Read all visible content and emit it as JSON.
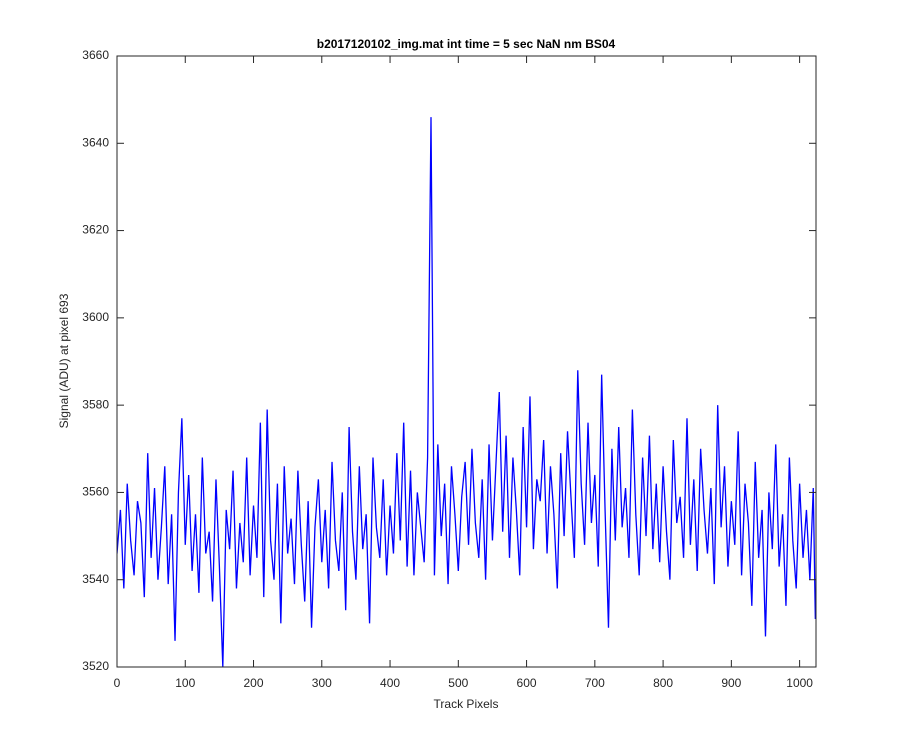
{
  "chart_data": {
    "type": "line",
    "title": "b2017120102_img.mat int time = 5 sec  NaN nm BS04",
    "x_label": "Track Pixels",
    "y_label": "Signal (ADU) at pixel 693",
    "xlim": [
      0,
      1024
    ],
    "ylim": [
      3520,
      3660
    ],
    "xticks": [
      0,
      100,
      200,
      300,
      400,
      500,
      600,
      700,
      800,
      900,
      1000
    ],
    "yticks": [
      3520,
      3540,
      3560,
      3580,
      3600,
      3620,
      3640,
      3660
    ],
    "grid": false,
    "x": [
      0,
      5,
      10,
      15,
      20,
      25,
      30,
      35,
      40,
      45,
      50,
      55,
      60,
      65,
      70,
      75,
      80,
      85,
      90,
      95,
      100,
      105,
      110,
      115,
      120,
      125,
      130,
      135,
      140,
      145,
      150,
      155,
      160,
      165,
      170,
      175,
      180,
      185,
      190,
      195,
      200,
      205,
      210,
      215,
      220,
      225,
      230,
      235,
      240,
      245,
      250,
      255,
      260,
      265,
      270,
      275,
      280,
      285,
      290,
      295,
      300,
      305,
      310,
      315,
      320,
      325,
      330,
      335,
      340,
      345,
      350,
      355,
      360,
      365,
      370,
      375,
      380,
      385,
      390,
      395,
      400,
      405,
      410,
      415,
      420,
      425,
      430,
      435,
      440,
      445,
      450,
      455,
      460,
      465,
      470,
      475,
      480,
      485,
      490,
      495,
      500,
      505,
      510,
      515,
      520,
      525,
      530,
      535,
      540,
      545,
      550,
      555,
      560,
      565,
      570,
      575,
      580,
      585,
      590,
      595,
      600,
      605,
      610,
      615,
      620,
      625,
      630,
      635,
      640,
      645,
      650,
      655,
      660,
      665,
      670,
      675,
      680,
      685,
      690,
      695,
      700,
      705,
      710,
      715,
      720,
      725,
      730,
      735,
      740,
      745,
      750,
      755,
      760,
      765,
      770,
      775,
      780,
      785,
      790,
      795,
      800,
      805,
      810,
      815,
      820,
      825,
      830,
      835,
      840,
      845,
      850,
      855,
      860,
      865,
      870,
      875,
      880,
      885,
      890,
      895,
      900,
      905,
      910,
      915,
      920,
      925,
      930,
      935,
      940,
      945,
      950,
      955,
      960,
      965,
      970,
      975,
      980,
      985,
      990,
      995,
      1000,
      1005,
      1010,
      1015,
      1020,
      1023
    ],
    "series": [
      {
        "color": "#0000ff",
        "values": [
          3546,
          3556,
          3538,
          3562,
          3549,
          3541,
          3558,
          3553,
          3536,
          3569,
          3545,
          3561,
          3540,
          3552,
          3566,
          3539,
          3555,
          3526,
          3560,
          3577,
          3548,
          3564,
          3542,
          3555,
          3537,
          3568,
          3546,
          3551,
          3535,
          3563,
          3543,
          3520,
          3556,
          3547,
          3565,
          3538,
          3553,
          3544,
          3568,
          3541,
          3557,
          3545,
          3576,
          3536,
          3579,
          3549,
          3540,
          3562,
          3530,
          3566,
          3546,
          3554,
          3539,
          3565,
          3548,
          3535,
          3558,
          3529,
          3552,
          3563,
          3544,
          3556,
          3538,
          3567,
          3549,
          3542,
          3560,
          3533,
          3575,
          3551,
          3540,
          3566,
          3547,
          3555,
          3530,
          3568,
          3552,
          3545,
          3563,
          3541,
          3557,
          3546,
          3569,
          3549,
          3576,
          3543,
          3565,
          3541,
          3560,
          3552,
          3544,
          3568,
          3646,
          3541,
          3571,
          3550,
          3562,
          3539,
          3566,
          3555,
          3542,
          3559,
          3567,
          3548,
          3570,
          3553,
          3545,
          3563,
          3540,
          3571,
          3549,
          3566,
          3583,
          3551,
          3573,
          3545,
          3568,
          3556,
          3541,
          3575,
          3552,
          3582,
          3547,
          3563,
          3558,
          3572,
          3546,
          3566,
          3555,
          3538,
          3569,
          3550,
          3574,
          3559,
          3545,
          3588,
          3562,
          3548,
          3576,
          3553,
          3564,
          3543,
          3587,
          3556,
          3529,
          3570,
          3549,
          3575,
          3552,
          3561,
          3545,
          3579,
          3555,
          3541,
          3568,
          3550,
          3573,
          3547,
          3562,
          3544,
          3566,
          3551,
          3540,
          3572,
          3553,
          3559,
          3545,
          3577,
          3548,
          3563,
          3542,
          3570,
          3556,
          3546,
          3561,
          3539,
          3580,
          3552,
          3566,
          3543,
          3558,
          3548,
          3574,
          3541,
          3562,
          3553,
          3534,
          3567,
          3545,
          3556,
          3527,
          3560,
          3547,
          3571,
          3543,
          3555,
          3534,
          3568,
          3549,
          3538,
          3562,
          3545,
          3556,
          3540,
          3561,
          3531
        ]
      }
    ]
  }
}
